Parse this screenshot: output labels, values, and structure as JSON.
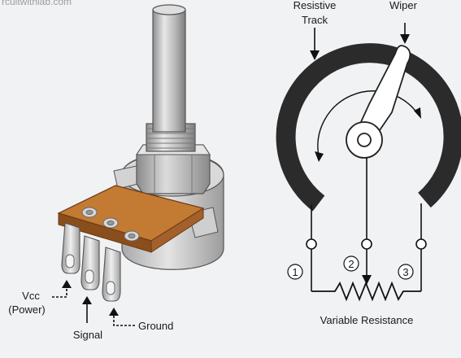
{
  "watermark": "rcuitwithlab.com",
  "labels": {
    "resistive_track_line1": "Resistive",
    "resistive_track_line2": "Track",
    "wiper": "Wiper",
    "vcc_line1": "Vcc",
    "vcc_line2": "(Power)",
    "signal": "Signal",
    "ground": "Ground",
    "variable_resistance": "Variable Resistance"
  },
  "terminals": [
    "1",
    "2",
    "3"
  ],
  "colors": {
    "background": "#f1f2f4",
    "track": "#2b2b2b",
    "wiper_fill": "#ffffff",
    "pcb": "#b8712f",
    "metal": "#c9c9c9",
    "pin": "#d8d8d8"
  }
}
